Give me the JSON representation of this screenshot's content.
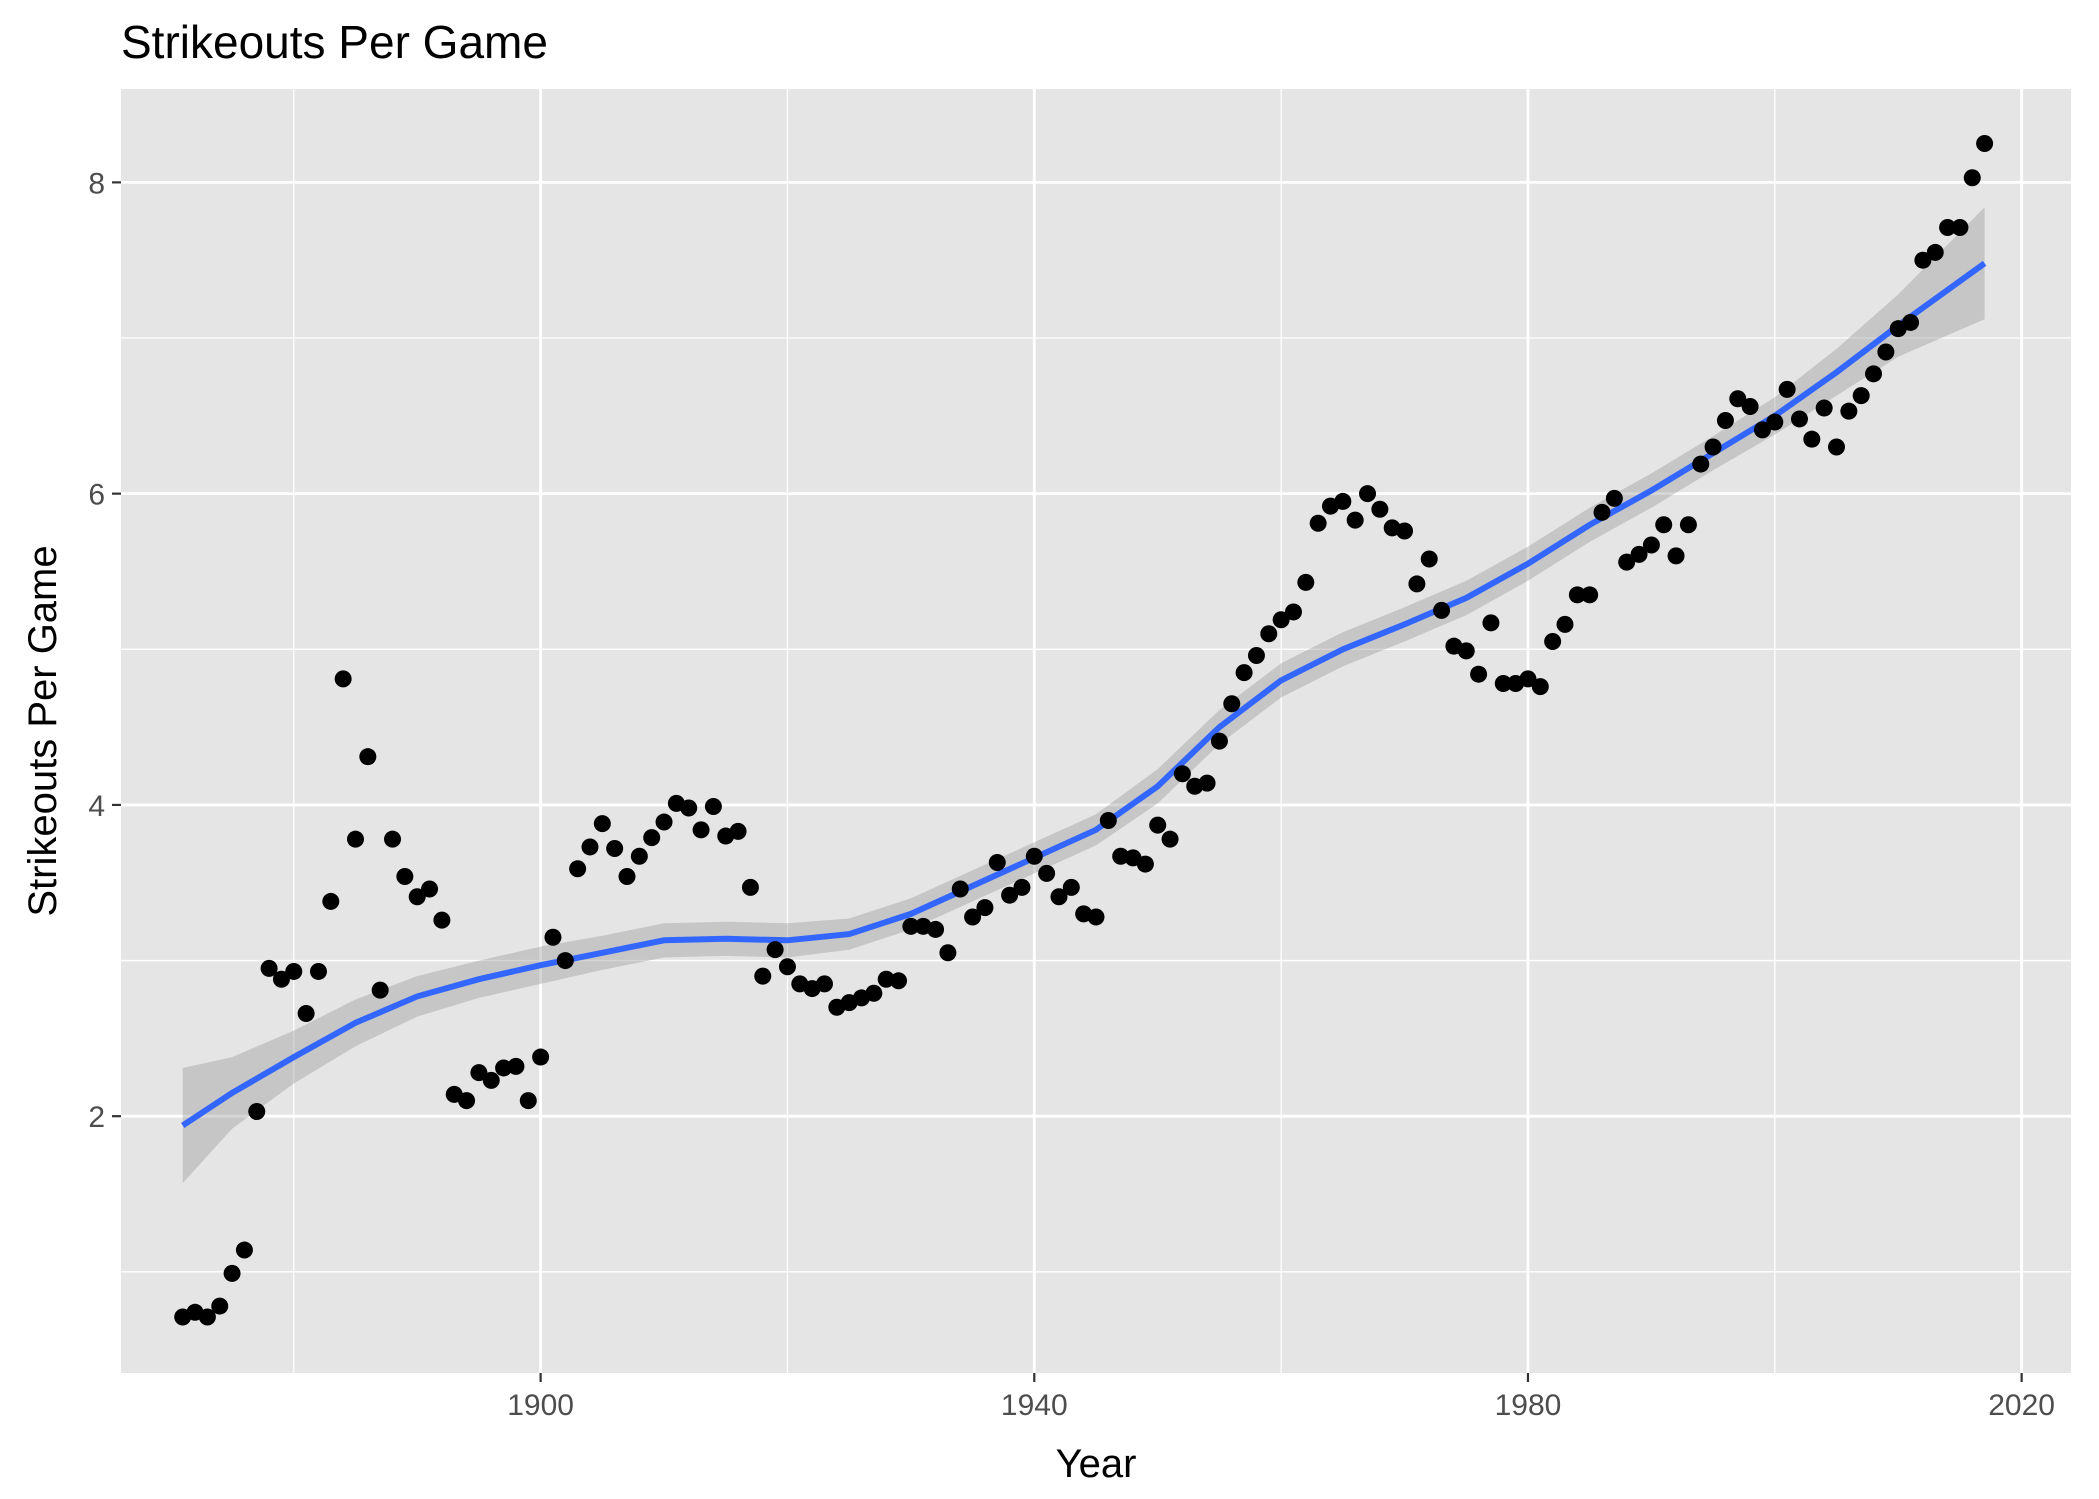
{
  "chart_data": {
    "type": "scatter",
    "title": "Strikeouts Per Game",
    "xlabel": "Year",
    "ylabel": "Strikeouts Per Game",
    "xlim": [
      1866,
      2024
    ],
    "ylim": [
      0.35,
      8.6
    ],
    "x_ticks": [
      1900,
      1940,
      1980,
      2020
    ],
    "x_minor_ticks": [
      1880,
      1920,
      1960,
      2000
    ],
    "y_ticks": [
      2,
      4,
      6,
      8
    ],
    "y_minor_ticks": [
      1,
      3,
      5,
      7
    ],
    "x_tick_labels": [
      "1900",
      "1940",
      "1980",
      "2020"
    ],
    "y_tick_labels": [
      "2",
      "4",
      "6",
      "8"
    ],
    "grid": true,
    "legend": "none",
    "colors": {
      "panel": "#e5e5e5",
      "grid": "#ffffff",
      "points": "#000000",
      "smooth_line": "#3366ff",
      "ribbon": "#999999"
    },
    "points": [
      [
        1871,
        0.71
      ],
      [
        1872,
        0.74
      ],
      [
        1873,
        0.71
      ],
      [
        1874,
        0.78
      ],
      [
        1875,
        0.99
      ],
      [
        1876,
        1.14
      ],
      [
        1877,
        2.03
      ],
      [
        1878,
        2.95
      ],
      [
        1879,
        2.88
      ],
      [
        1880,
        2.93
      ],
      [
        1881,
        2.66
      ],
      [
        1882,
        2.93
      ],
      [
        1883,
        3.38
      ],
      [
        1884,
        4.81
      ],
      [
        1885,
        3.78
      ],
      [
        1886,
        4.31
      ],
      [
        1887,
        2.81
      ],
      [
        1888,
        3.78
      ],
      [
        1889,
        3.54
      ],
      [
        1890,
        3.41
      ],
      [
        1891,
        3.46
      ],
      [
        1892,
        3.26
      ],
      [
        1893,
        2.14
      ],
      [
        1894,
        2.1
      ],
      [
        1895,
        2.28
      ],
      [
        1896,
        2.23
      ],
      [
        1897,
        2.31
      ],
      [
        1898,
        2.32
      ],
      [
        1899,
        2.1
      ],
      [
        1900,
        2.38
      ],
      [
        1901,
        3.15
      ],
      [
        1902,
        3.0
      ],
      [
        1903,
        3.59
      ],
      [
        1904,
        3.73
      ],
      [
        1905,
        3.88
      ],
      [
        1906,
        3.72
      ],
      [
        1907,
        3.54
      ],
      [
        1908,
        3.67
      ],
      [
        1909,
        3.79
      ],
      [
        1910,
        3.89
      ],
      [
        1911,
        4.01
      ],
      [
        1912,
        3.98
      ],
      [
        1913,
        3.84
      ],
      [
        1914,
        3.99
      ],
      [
        1915,
        3.8
      ],
      [
        1916,
        3.83
      ],
      [
        1917,
        3.47
      ],
      [
        1918,
        2.9
      ],
      [
        1919,
        3.07
      ],
      [
        1920,
        2.96
      ],
      [
        1921,
        2.85
      ],
      [
        1922,
        2.82
      ],
      [
        1923,
        2.85
      ],
      [
        1924,
        2.7
      ],
      [
        1925,
        2.73
      ],
      [
        1926,
        2.76
      ],
      [
        1927,
        2.79
      ],
      [
        1928,
        2.88
      ],
      [
        1929,
        2.87
      ],
      [
        1930,
        3.22
      ],
      [
        1931,
        3.22
      ],
      [
        1932,
        3.2
      ],
      [
        1933,
        3.05
      ],
      [
        1934,
        3.46
      ],
      [
        1935,
        3.28
      ],
      [
        1936,
        3.34
      ],
      [
        1937,
        3.63
      ],
      [
        1938,
        3.42
      ],
      [
        1939,
        3.47
      ],
      [
        1940,
        3.67
      ],
      [
        1941,
        3.56
      ],
      [
        1942,
        3.41
      ],
      [
        1943,
        3.47
      ],
      [
        1944,
        3.3
      ],
      [
        1945,
        3.28
      ],
      [
        1946,
        3.9
      ],
      [
        1947,
        3.67
      ],
      [
        1948,
        3.66
      ],
      [
        1949,
        3.62
      ],
      [
        1950,
        3.87
      ],
      [
        1951,
        3.78
      ],
      [
        1952,
        4.2
      ],
      [
        1953,
        4.12
      ],
      [
        1954,
        4.14
      ],
      [
        1955,
        4.41
      ],
      [
        1956,
        4.65
      ],
      [
        1957,
        4.85
      ],
      [
        1958,
        4.96
      ],
      [
        1959,
        5.1
      ],
      [
        1960,
        5.19
      ],
      [
        1961,
        5.24
      ],
      [
        1962,
        5.43
      ],
      [
        1963,
        5.81
      ],
      [
        1964,
        5.92
      ],
      [
        1965,
        5.95
      ],
      [
        1966,
        5.83
      ],
      [
        1967,
        6.0
      ],
      [
        1968,
        5.9
      ],
      [
        1969,
        5.78
      ],
      [
        1970,
        5.76
      ],
      [
        1971,
        5.42
      ],
      [
        1972,
        5.58
      ],
      [
        1973,
        5.25
      ],
      [
        1974,
        5.02
      ],
      [
        1975,
        4.99
      ],
      [
        1976,
        4.84
      ],
      [
        1977,
        5.17
      ],
      [
        1978,
        4.78
      ],
      [
        1979,
        4.78
      ],
      [
        1980,
        4.81
      ],
      [
        1981,
        4.76
      ],
      [
        1982,
        5.05
      ],
      [
        1983,
        5.16
      ],
      [
        1984,
        5.35
      ],
      [
        1985,
        5.35
      ],
      [
        1986,
        5.88
      ],
      [
        1987,
        5.97
      ],
      [
        1988,
        5.56
      ],
      [
        1989,
        5.61
      ],
      [
        1990,
        5.67
      ],
      [
        1991,
        5.8
      ],
      [
        1992,
        5.6
      ],
      [
        1993,
        5.8
      ],
      [
        1994,
        6.19
      ],
      [
        1995,
        6.3
      ],
      [
        1996,
        6.47
      ],
      [
        1997,
        6.61
      ],
      [
        1998,
        6.56
      ],
      [
        1999,
        6.41
      ],
      [
        2000,
        6.46
      ],
      [
        2001,
        6.67
      ],
      [
        2002,
        6.48
      ],
      [
        2003,
        6.35
      ],
      [
        2004,
        6.55
      ],
      [
        2005,
        6.3
      ],
      [
        2006,
        6.53
      ],
      [
        2007,
        6.63
      ],
      [
        2008,
        6.77
      ],
      [
        2009,
        6.91
      ],
      [
        2010,
        7.06
      ],
      [
        2011,
        7.1
      ],
      [
        2012,
        7.5
      ],
      [
        2013,
        7.55
      ],
      [
        2014,
        7.71
      ],
      [
        2015,
        7.71
      ],
      [
        2016,
        8.03
      ],
      [
        2017,
        8.25
      ]
    ],
    "smooth": [
      [
        1871,
        1.94,
        1.57,
        2.31
      ],
      [
        1875,
        2.15,
        1.92,
        2.38
      ],
      [
        1880,
        2.38,
        2.21,
        2.55
      ],
      [
        1885,
        2.6,
        2.45,
        2.75
      ],
      [
        1890,
        2.77,
        2.64,
        2.9
      ],
      [
        1895,
        2.88,
        2.76,
        3.0
      ],
      [
        1900,
        2.97,
        2.85,
        3.09
      ],
      [
        1905,
        3.05,
        2.94,
        3.16
      ],
      [
        1910,
        3.13,
        3.02,
        3.24
      ],
      [
        1915,
        3.14,
        3.03,
        3.25
      ],
      [
        1920,
        3.13,
        3.02,
        3.24
      ],
      [
        1925,
        3.17,
        3.07,
        3.27
      ],
      [
        1930,
        3.3,
        3.2,
        3.4
      ],
      [
        1935,
        3.48,
        3.38,
        3.58
      ],
      [
        1940,
        3.66,
        3.56,
        3.76
      ],
      [
        1945,
        3.84,
        3.74,
        3.94
      ],
      [
        1950,
        4.12,
        4.01,
        4.23
      ],
      [
        1955,
        4.5,
        4.39,
        4.61
      ],
      [
        1960,
        4.8,
        4.69,
        4.91
      ],
      [
        1965,
        5.0,
        4.89,
        5.11
      ],
      [
        1970,
        5.16,
        5.05,
        5.27
      ],
      [
        1975,
        5.33,
        5.22,
        5.44
      ],
      [
        1980,
        5.55,
        5.44,
        5.66
      ],
      [
        1985,
        5.8,
        5.69,
        5.91
      ],
      [
        1990,
        6.02,
        5.91,
        6.13
      ],
      [
        1995,
        6.26,
        6.15,
        6.37
      ],
      [
        2000,
        6.5,
        6.38,
        6.62
      ],
      [
        2005,
        6.78,
        6.63,
        6.93
      ],
      [
        2010,
        7.08,
        6.88,
        7.28
      ],
      [
        2017,
        7.48,
        7.12,
        7.84
      ]
    ]
  }
}
